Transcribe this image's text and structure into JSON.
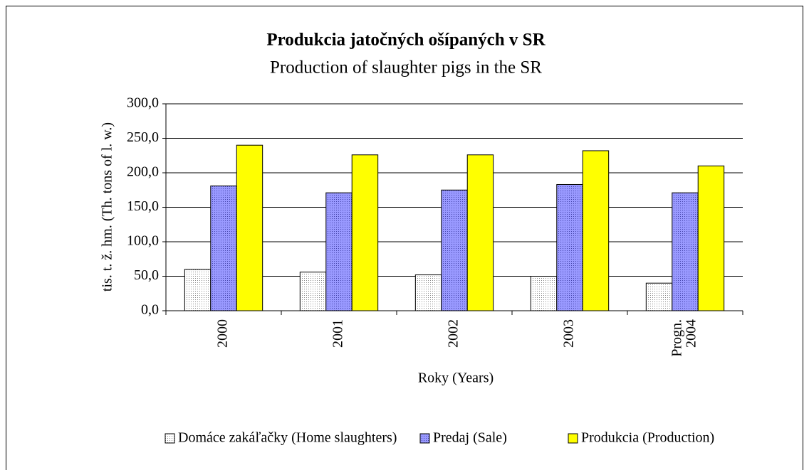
{
  "chart_data": {
    "type": "bar",
    "title": "Produkcia jatočných ošípaných v SR",
    "subtitle": "Production of slaughter pigs in the SR",
    "y_label": "tis. t. ž. hm. (Th. tons of l. w.)",
    "x_label": "Roky (Years)",
    "categories": [
      [
        "2000"
      ],
      [
        "2001"
      ],
      [
        "2002"
      ],
      [
        "2003"
      ],
      [
        "Progn.",
        "2004"
      ]
    ],
    "series": [
      {
        "name": "Domáce zakáľačky (Home slaughters)",
        "color": "#ffffff",
        "pattern": "dots",
        "values": [
          60,
          56,
          52,
          50,
          40
        ]
      },
      {
        "name": "Predaj (Sale)",
        "color": "#9999ff",
        "pattern": "dots",
        "values": [
          181,
          171,
          175,
          183,
          171
        ]
      },
      {
        "name": "Produkcia (Production)",
        "color": "#ffff00",
        "values": [
          240,
          226,
          226,
          232,
          210
        ]
      }
    ],
    "ylim": [
      0,
      300
    ],
    "yticks": [
      {
        "value": 0,
        "label": "0,0"
      },
      {
        "value": 50,
        "label": "50,0"
      },
      {
        "value": 100,
        "label": "100,0"
      },
      {
        "value": 150,
        "label": "150,0"
      },
      {
        "value": 200,
        "label": "200,0"
      },
      {
        "value": 250,
        "label": "250,0"
      },
      {
        "value": 300,
        "label": "300,0"
      }
    ],
    "grid": true,
    "legend": "bottom"
  }
}
